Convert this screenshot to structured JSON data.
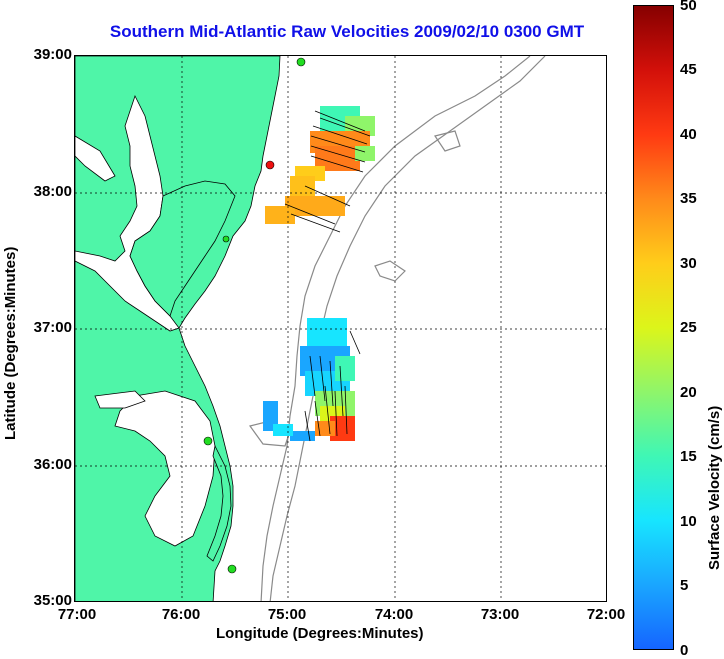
{
  "title": "Southern Mid-Atlantic Raw Velocities 2009/02/10 0300 GMT",
  "x_axis": {
    "label": "Longitude (Degrees:Minutes)",
    "ticks": [
      "77:00",
      "76:00",
      "75:00",
      "74:00",
      "73:00",
      "72:00"
    ]
  },
  "y_axis": {
    "label": "Latitude (Degrees:Minutes)",
    "ticks": [
      "39:00",
      "38:00",
      "37:00",
      "36:00",
      "35:00"
    ]
  },
  "colorbar": {
    "label": "Surface Velocity (cm/s)",
    "ticks": [
      "50",
      "45",
      "40",
      "35",
      "30",
      "25",
      "20",
      "15",
      "10",
      "5",
      "0"
    ],
    "range": [
      0,
      50
    ],
    "colormap": "jet"
  },
  "map": {
    "land_color": "#4ff5a8",
    "grid": "dotted",
    "bathymetry_contour_color": "#8a8a8a",
    "station_marker_color": "#22dd22",
    "highlight_station_color": "#ee1111"
  }
}
